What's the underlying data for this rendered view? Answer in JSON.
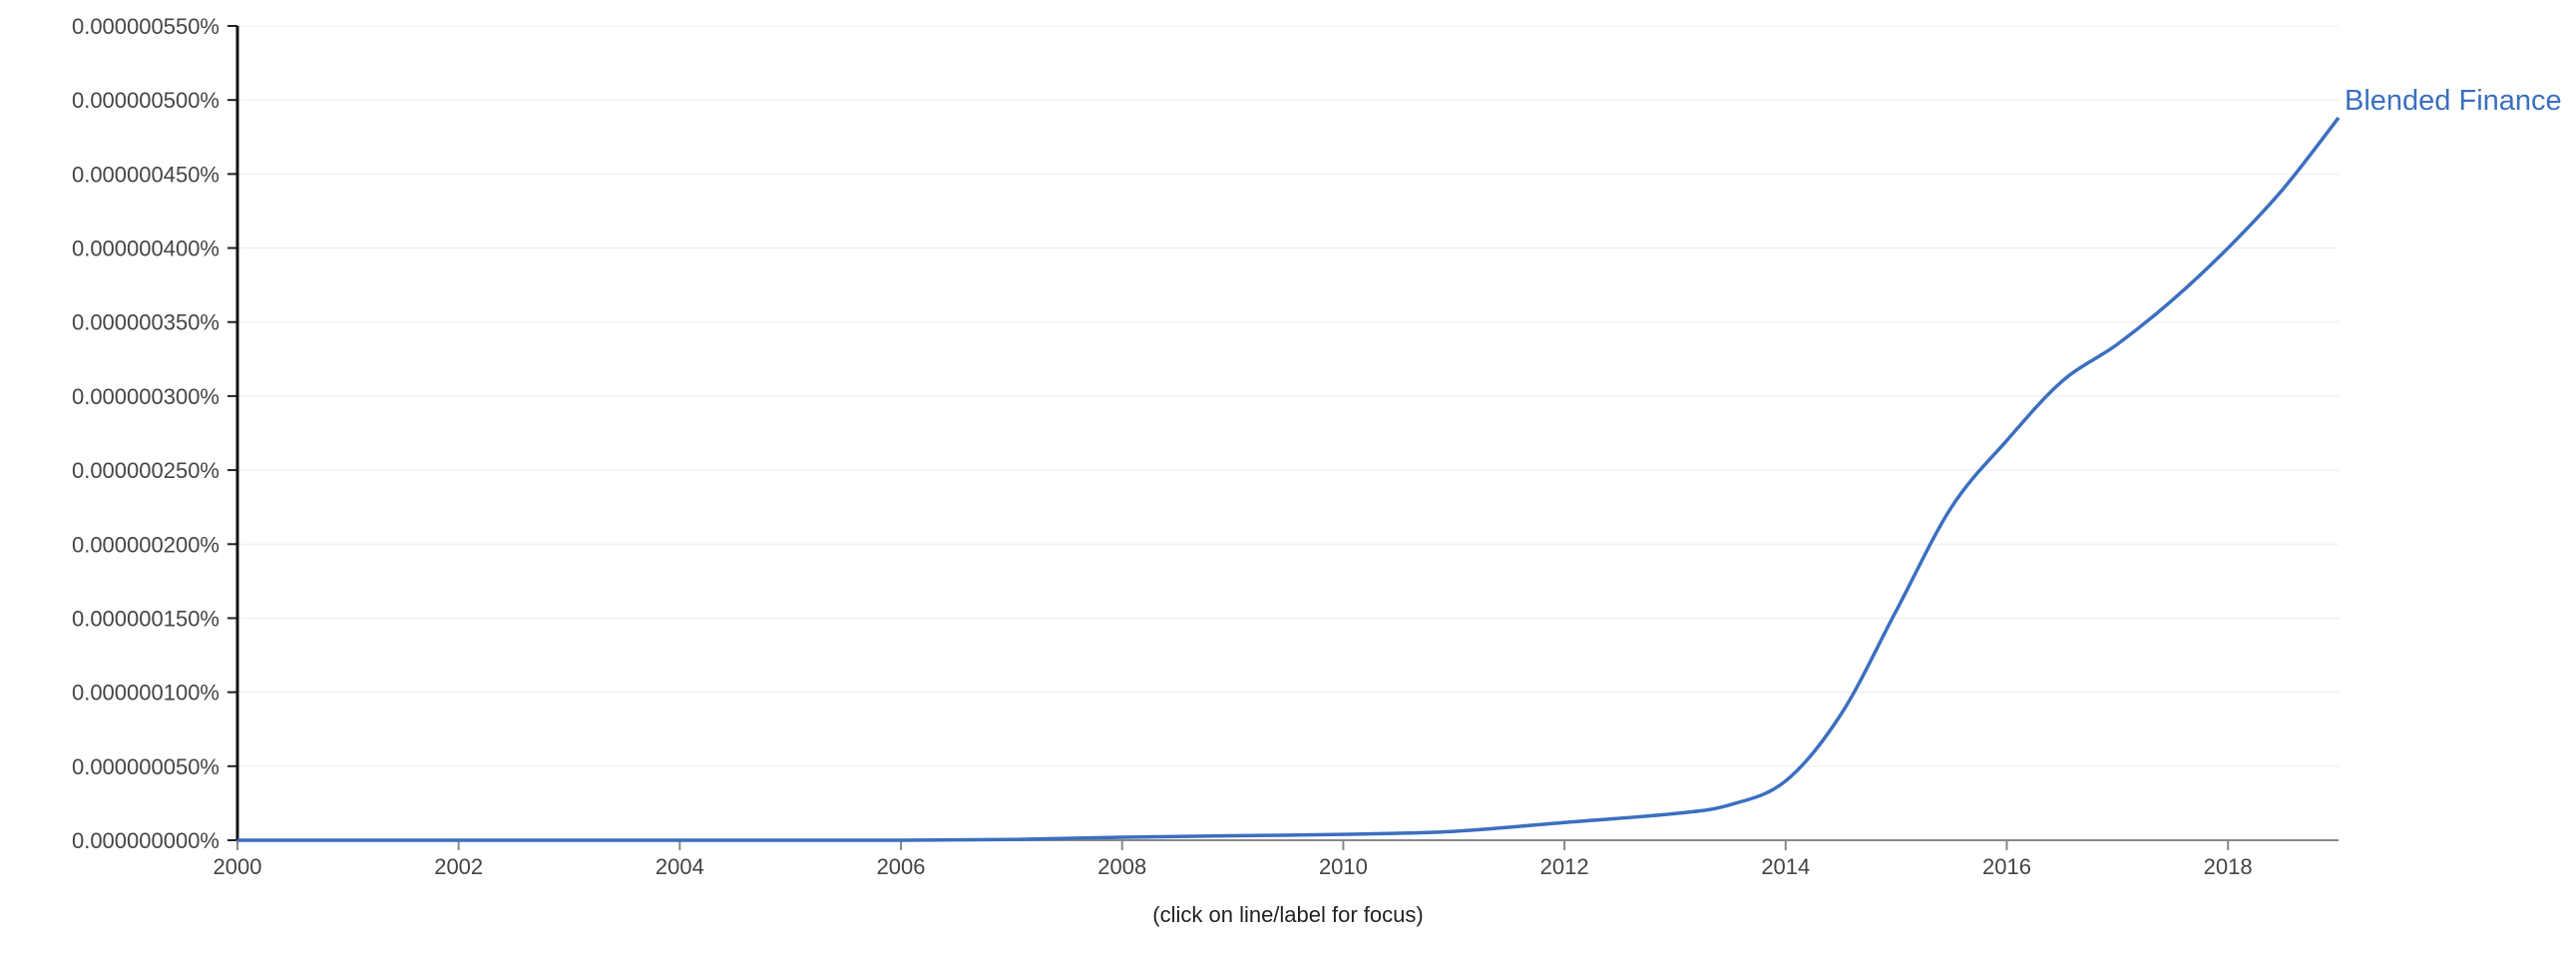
{
  "chart_data": {
    "type": "line",
    "title": "",
    "xlabel": "",
    "ylabel": "",
    "xlim": [
      2000,
      2019
    ],
    "ylim": [
      0,
      5.5e-07
    ],
    "x_ticks": [
      2000,
      2002,
      2004,
      2006,
      2008,
      2010,
      2012,
      2014,
      2016,
      2018
    ],
    "x_tick_labels": [
      "2000",
      "2002",
      "2004",
      "2006",
      "2008",
      "2010",
      "2012",
      "2014",
      "2016",
      "2018"
    ],
    "y_ticks": [
      0,
      5e-08,
      1e-07,
      1.5e-07,
      2e-07,
      2.5e-07,
      3e-07,
      3.5e-07,
      4e-07,
      4.5e-07,
      5e-07,
      5.5e-07
    ],
    "y_tick_labels": [
      "0.000000000%",
      "0.000000050%",
      "0.000000100%",
      "0.000000150%",
      "0.000000200%",
      "0.000000250%",
      "0.000000300%",
      "0.000000350%",
      "0.000000400%",
      "0.000000450%",
      "0.000000500%",
      "0.000000550%"
    ],
    "grid": true,
    "series": [
      {
        "name": "Blended Finance",
        "color": "#3b6fbf",
        "x": [
          2000,
          2001,
          2002,
          2003,
          2004,
          2005,
          2006,
          2007,
          2008,
          2009,
          2010,
          2011,
          2012,
          2013,
          2013.5,
          2014,
          2014.5,
          2015,
          2015.5,
          2016,
          2016.5,
          2017,
          2017.5,
          2018,
          2018.5,
          2019
        ],
        "values": [
          0,
          0,
          0,
          0,
          0,
          0,
          0,
          5e-10,
          2e-09,
          3e-09,
          4e-09,
          6e-09,
          1.2e-08,
          1.8e-08,
          2.4e-08,
          4e-08,
          8.5e-08,
          1.55e-07,
          2.25e-07,
          2.7e-07,
          3.1e-07,
          3.35e-07,
          3.65e-07,
          4e-07,
          4.4e-07,
          4.88e-07
        ]
      }
    ],
    "footer_note": "(click on line/label for focus)"
  }
}
